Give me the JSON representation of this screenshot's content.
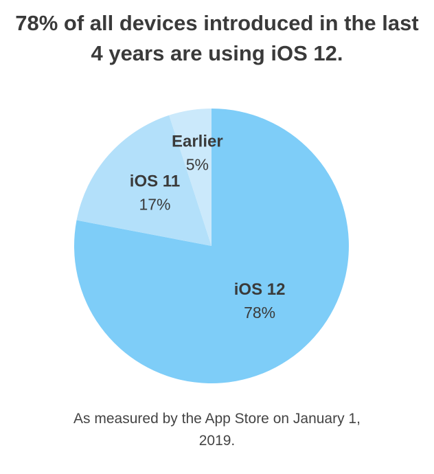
{
  "chart_data": {
    "type": "pie",
    "title": "78% of all devices introduced in the last 4 years are using iOS 12.",
    "categories": [
      "iOS 12",
      "iOS 11",
      "Earlier"
    ],
    "values": [
      78,
      17,
      5
    ],
    "value_labels": [
      "78%",
      "17%",
      "5%"
    ],
    "colors": [
      "#7ecdf8",
      "#b3e0fa",
      "#cbe9fb"
    ],
    "footnote": "As measured by the App Store on January 1, 2019."
  }
}
